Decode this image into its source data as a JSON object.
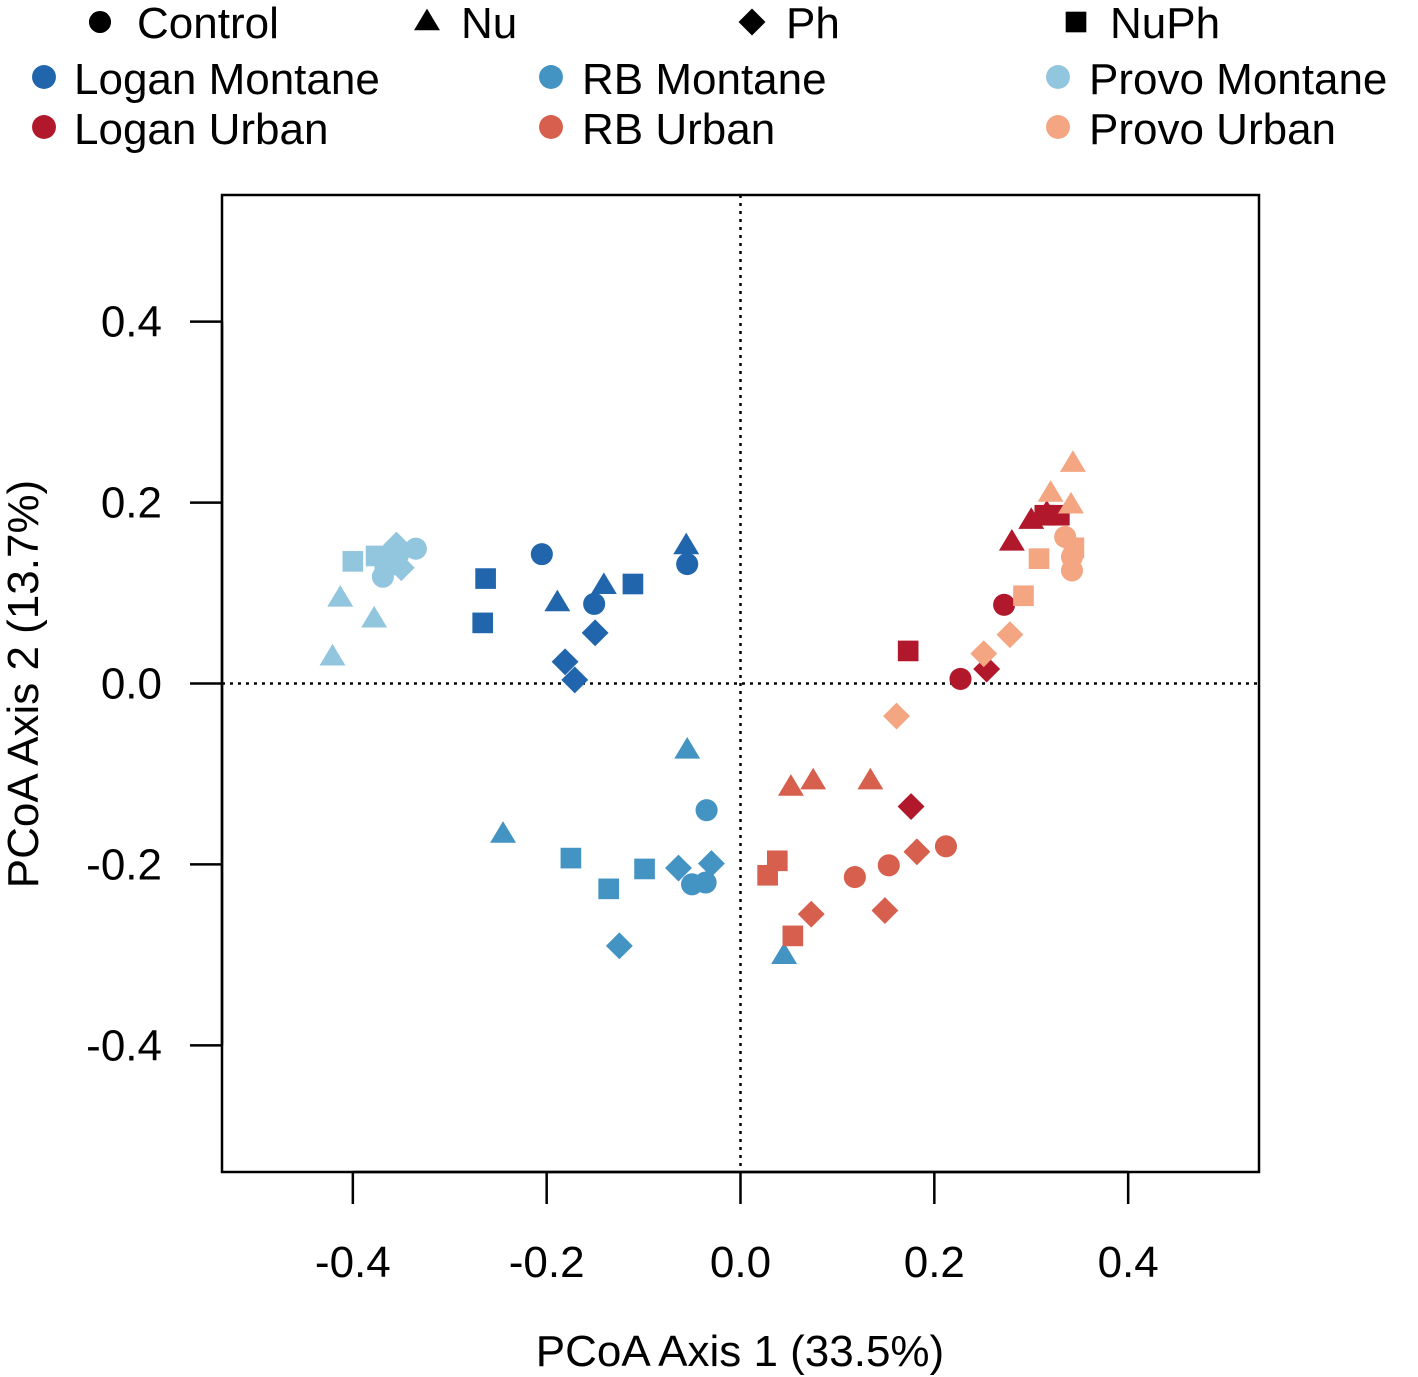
{
  "chart_data": {
    "type": "scatter",
    "title": "",
    "xlabel": "PCoA Axis 1 (33.5%)",
    "ylabel": "PCoA Axis 2 (13.7%)",
    "xlim": [
      -0.535,
      0.535
    ],
    "ylim": [
      -0.54,
      0.54
    ],
    "xticks": [
      -0.4,
      -0.2,
      0.0,
      0.2,
      0.4
    ],
    "xtick_labels": [
      "-0.4",
      "-0.2",
      "0.0",
      "0.2",
      "0.4"
    ],
    "yticks": [
      -0.4,
      -0.2,
      0.0,
      0.2,
      0.4
    ],
    "ytick_labels": [
      "-0.4",
      "-0.2",
      "0.0",
      "0.2",
      "0.4"
    ],
    "reference_lines": {
      "x": 0,
      "y": 0,
      "style": "dotted"
    },
    "grid": false,
    "legend_placement": "top",
    "shape_legend": [
      {
        "label": "Control",
        "shape": "circle"
      },
      {
        "label": "Nu",
        "shape": "triangle"
      },
      {
        "label": "Ph",
        "shape": "diamond"
      },
      {
        "label": "NuPh",
        "shape": "square"
      }
    ],
    "series": [
      {
        "name": "Logan Montane",
        "color": "#2166ac",
        "points": [
          {
            "x": -0.205,
            "y": 0.143,
            "shape": "circle"
          },
          {
            "x": -0.151,
            "y": 0.088,
            "shape": "circle"
          },
          {
            "x": -0.055,
            "y": 0.132,
            "shape": "circle"
          },
          {
            "x": -0.056,
            "y": 0.152,
            "shape": "triangle"
          },
          {
            "x": -0.189,
            "y": 0.089,
            "shape": "triangle"
          },
          {
            "x": -0.141,
            "y": 0.108,
            "shape": "triangle"
          },
          {
            "x": -0.181,
            "y": 0.024,
            "shape": "diamond"
          },
          {
            "x": -0.15,
            "y": 0.056,
            "shape": "diamond"
          },
          {
            "x": -0.171,
            "y": 0.004,
            "shape": "diamond"
          },
          {
            "x": -0.263,
            "y": 0.116,
            "shape": "square"
          },
          {
            "x": -0.266,
            "y": 0.067,
            "shape": "square"
          },
          {
            "x": -0.111,
            "y": 0.11,
            "shape": "square"
          }
        ]
      },
      {
        "name": "RB Montane",
        "color": "#4393c3",
        "points": [
          {
            "x": -0.035,
            "y": -0.14,
            "shape": "circle"
          },
          {
            "x": -0.05,
            "y": -0.222,
            "shape": "circle"
          },
          {
            "x": -0.036,
            "y": -0.22,
            "shape": "circle"
          },
          {
            "x": -0.055,
            "y": -0.074,
            "shape": "triangle"
          },
          {
            "x": -0.245,
            "y": -0.167,
            "shape": "triangle"
          },
          {
            "x": 0.045,
            "y": -0.301,
            "shape": "triangle"
          },
          {
            "x": -0.064,
            "y": -0.204,
            "shape": "diamond"
          },
          {
            "x": -0.03,
            "y": -0.199,
            "shape": "diamond"
          },
          {
            "x": -0.125,
            "y": -0.29,
            "shape": "diamond"
          },
          {
            "x": -0.175,
            "y": -0.193,
            "shape": "square"
          },
          {
            "x": -0.136,
            "y": -0.227,
            "shape": "square"
          },
          {
            "x": -0.099,
            "y": -0.205,
            "shape": "square"
          }
        ]
      },
      {
        "name": "Provo Montane",
        "color": "#92c5de",
        "points": [
          {
            "x": -0.335,
            "y": 0.149,
            "shape": "circle"
          },
          {
            "x": -0.353,
            "y": 0.143,
            "shape": "circle"
          },
          {
            "x": -0.369,
            "y": 0.118,
            "shape": "circle"
          },
          {
            "x": -0.413,
            "y": 0.094,
            "shape": "triangle"
          },
          {
            "x": -0.378,
            "y": 0.071,
            "shape": "triangle"
          },
          {
            "x": -0.421,
            "y": 0.029,
            "shape": "triangle"
          },
          {
            "x": -0.355,
            "y": 0.153,
            "shape": "diamond"
          },
          {
            "x": -0.362,
            "y": 0.138,
            "shape": "diamond"
          },
          {
            "x": -0.35,
            "y": 0.128,
            "shape": "diamond"
          },
          {
            "x": -0.4,
            "y": 0.135,
            "shape": "square"
          },
          {
            "x": -0.376,
            "y": 0.141,
            "shape": "square"
          },
          {
            "x": -0.367,
            "y": 0.131,
            "shape": "square"
          }
        ]
      },
      {
        "name": "Logan Urban",
        "color": "#b2182b",
        "points": [
          {
            "x": 0.272,
            "y": 0.087,
            "shape": "circle"
          },
          {
            "x": 0.227,
            "y": 0.005,
            "shape": "circle"
          },
          {
            "x": 0.28,
            "y": 0.156,
            "shape": "triangle"
          },
          {
            "x": 0.3,
            "y": 0.18,
            "shape": "triangle"
          },
          {
            "x": 0.316,
            "y": 0.188,
            "shape": "triangle"
          },
          {
            "x": 0.254,
            "y": 0.016,
            "shape": "diamond"
          },
          {
            "x": 0.176,
            "y": -0.136,
            "shape": "diamond"
          },
          {
            "x": 0.173,
            "y": 0.036,
            "shape": "square"
          },
          {
            "x": 0.314,
            "y": 0.186,
            "shape": "square"
          },
          {
            "x": 0.329,
            "y": 0.186,
            "shape": "square"
          }
        ]
      },
      {
        "name": "RB Urban",
        "color": "#d6604d",
        "points": [
          {
            "x": 0.118,
            "y": -0.214,
            "shape": "circle"
          },
          {
            "x": 0.153,
            "y": -0.201,
            "shape": "circle"
          },
          {
            "x": 0.212,
            "y": -0.18,
            "shape": "circle"
          },
          {
            "x": 0.052,
            "y": -0.115,
            "shape": "triangle"
          },
          {
            "x": 0.075,
            "y": -0.108,
            "shape": "triangle"
          },
          {
            "x": 0.134,
            "y": -0.108,
            "shape": "triangle"
          },
          {
            "x": 0.073,
            "y": -0.255,
            "shape": "diamond"
          },
          {
            "x": 0.149,
            "y": -0.251,
            "shape": "diamond"
          },
          {
            "x": 0.182,
            "y": -0.186,
            "shape": "diamond"
          },
          {
            "x": 0.038,
            "y": -0.196,
            "shape": "square"
          },
          {
            "x": 0.028,
            "y": -0.212,
            "shape": "square"
          },
          {
            "x": 0.054,
            "y": -0.279,
            "shape": "square"
          }
        ]
      },
      {
        "name": "Provo Urban",
        "color": "#f4a582",
        "points": [
          {
            "x": 0.335,
            "y": 0.162,
            "shape": "circle"
          },
          {
            "x": 0.342,
            "y": 0.14,
            "shape": "circle"
          },
          {
            "x": 0.342,
            "y": 0.125,
            "shape": "circle"
          },
          {
            "x": 0.343,
            "y": 0.243,
            "shape": "triangle"
          },
          {
            "x": 0.32,
            "y": 0.21,
            "shape": "triangle"
          },
          {
            "x": 0.341,
            "y": 0.197,
            "shape": "triangle"
          },
          {
            "x": 0.161,
            "y": -0.036,
            "shape": "diamond"
          },
          {
            "x": 0.251,
            "y": 0.033,
            "shape": "diamond"
          },
          {
            "x": 0.278,
            "y": 0.054,
            "shape": "diamond"
          },
          {
            "x": 0.292,
            "y": 0.097,
            "shape": "square"
          },
          {
            "x": 0.308,
            "y": 0.138,
            "shape": "square"
          },
          {
            "x": 0.344,
            "y": 0.15,
            "shape": "square"
          }
        ]
      }
    ]
  }
}
